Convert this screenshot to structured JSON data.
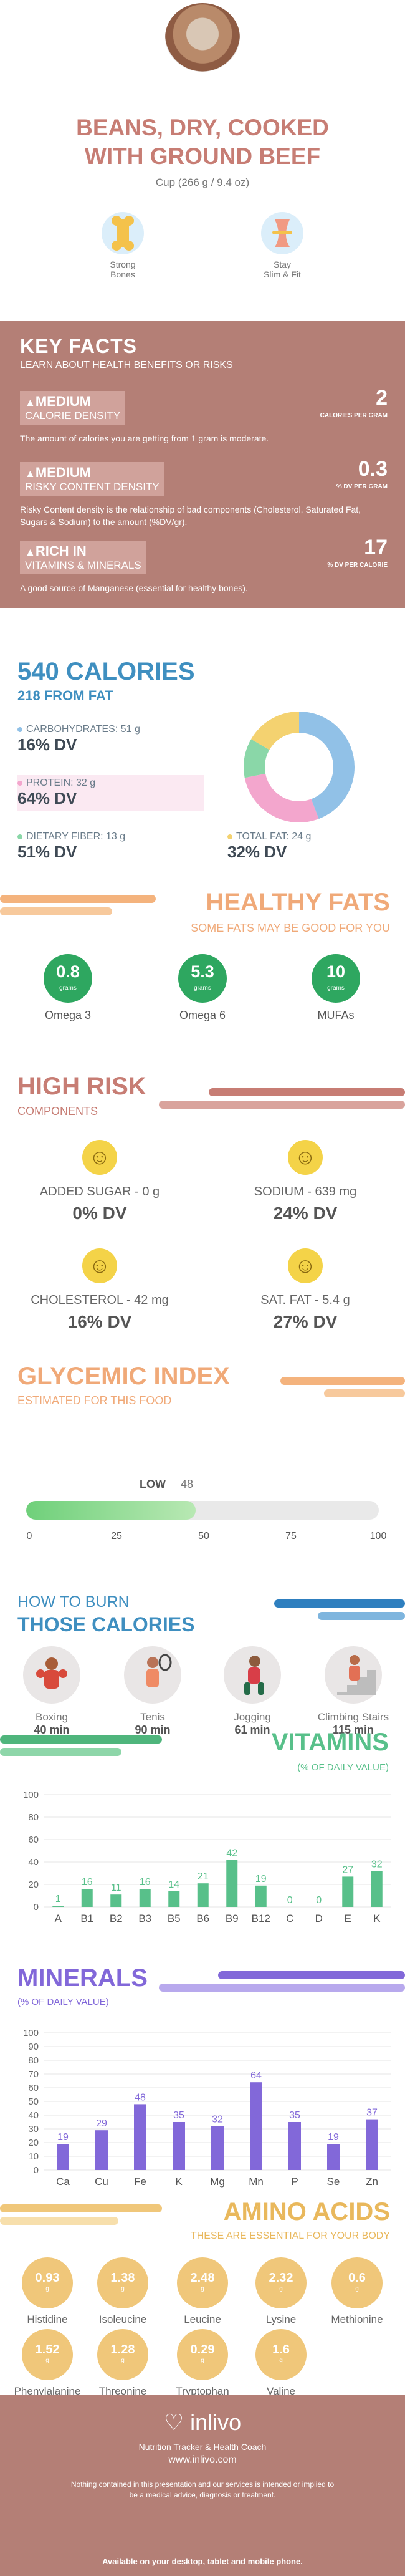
{
  "header": {
    "title_line1": "BEANS, DRY, COOKED",
    "title_line2": "WITH GROUND BEEF",
    "serving": "Cup (266 g / 9.4 oz)",
    "features": [
      {
        "label1": "Strong",
        "label2": "Bones",
        "icon": "bone-icon",
        "color": "#f4c24b"
      },
      {
        "label1": "Stay",
        "label2": "Slim & Fit",
        "icon": "slim-body-icon",
        "color": "#f19a83"
      }
    ]
  },
  "key_facts": {
    "title": "KEY FACTS",
    "subtitle": "LEARN ABOUT HEALTH BENEFITS OR RISKS",
    "items": [
      {
        "level": "MEDIUM",
        "name": "CALORIE DENSITY",
        "value": "2",
        "unit": "CALORIES PER GRAM",
        "desc": "The amount of calories you are getting from 1 gram is moderate."
      },
      {
        "level": "MEDIUM",
        "name": "RISKY CONTENT DENSITY",
        "value": "0.3",
        "unit": "% DV PER GRAM",
        "desc": "Risky Content density is the relationship of bad components (Cholesterol, Saturated Fat, Sugars & Sodium) to the amount (%DV/gr)."
      },
      {
        "level": "RICH IN",
        "name": "VITAMINS & MINERALS",
        "value": "17",
        "unit": "% DV PER CALORIE",
        "desc": "A good source of Manganese (essential for healthy bones)."
      }
    ]
  },
  "calories": {
    "title": "540 CALORIES",
    "subtitle": "218 FROM FAT",
    "macros": [
      {
        "label": "CARBOHYDRATES: 51 g",
        "dv": "16% DV",
        "color": "#91c1e7"
      },
      {
        "label": "PROTEIN: 32 g",
        "dv": "64% DV",
        "color": "#f3a6cd"
      },
      {
        "label": "DIETARY FIBER: 13 g",
        "dv": "51% DV",
        "color": "#8ad7a8"
      },
      {
        "label": "TOTAL FAT: 24 g",
        "dv": "32% DV",
        "color": "#f4d270"
      }
    ]
  },
  "healthy_fats": {
    "title": "HEALTHY FATS",
    "subtitle": "SOME FATS MAY BE GOOD FOR YOU",
    "items": [
      {
        "value": "0.8",
        "unit": "grams",
        "label": "Omega 3"
      },
      {
        "value": "5.3",
        "unit": "grams",
        "label": "Omega 6"
      },
      {
        "value": "10",
        "unit": "grams",
        "label": "MUFAs"
      }
    ]
  },
  "high_risk": {
    "title": "HIGH RISK",
    "subtitle": "COMPONENTS",
    "items": [
      {
        "label": "ADDED SUGAR - 0 g",
        "dv": "0% DV"
      },
      {
        "label": "SODIUM - 639 mg",
        "dv": "24% DV"
      },
      {
        "label": "CHOLESTEROL - 42 mg",
        "dv": "16% DV"
      },
      {
        "label": "SAT. FAT - 5.4 g",
        "dv": "27% DV"
      }
    ]
  },
  "glycemic": {
    "title": "GLYCEMIC INDEX",
    "subtitle": "ESTIMATED FOR THIS FOOD",
    "level": "LOW",
    "value": "48",
    "value_fraction": 0.48,
    "ticks": [
      "0",
      "25",
      "50",
      "75",
      "100"
    ]
  },
  "burn": {
    "title1": "HOW TO BURN",
    "title2": "THOSE CALORIES",
    "activities": [
      {
        "label": "Boxing",
        "time": "40 min",
        "icon": "boxing-icon"
      },
      {
        "label": "Tenis",
        "time": "90 min",
        "icon": "tennis-icon"
      },
      {
        "label": "Jogging",
        "time": "61 min",
        "icon": "jogging-icon"
      },
      {
        "label": "Climbing Stairs",
        "time": "115 min",
        "icon": "climbing-stairs-icon"
      }
    ]
  },
  "vitamins": {
    "title": "VITAMINS",
    "subtitle": "(% OF DAILY VALUE)"
  },
  "minerals": {
    "title": "MINERALS",
    "subtitle": "(% OF DAILY VALUE)"
  },
  "chart_data": [
    {
      "type": "bar",
      "categories": [
        "A",
        "B1",
        "B2",
        "B3",
        "B5",
        "B6",
        "B9",
        "B12",
        "C",
        "D",
        "E",
        "K"
      ],
      "values": [
        1,
        16,
        11,
        16,
        14,
        21,
        42,
        19,
        0,
        0,
        27,
        32
      ],
      "ylim": [
        0,
        100
      ],
      "yticks": [
        "0",
        "20",
        "40",
        "60",
        "80",
        "100"
      ],
      "color": "#58c08a"
    },
    {
      "type": "bar",
      "categories": [
        "Ca",
        "Cu",
        "Fe",
        "K",
        "Mg",
        "Mn",
        "P",
        "Se",
        "Zn"
      ],
      "values": [
        19,
        29,
        48,
        35,
        32,
        64,
        35,
        19,
        37
      ],
      "ylim": [
        0,
        100
      ],
      "yticks": [
        "0",
        "10",
        "20",
        "30",
        "40",
        "50",
        "60",
        "70",
        "80",
        "90",
        "100"
      ],
      "color": "#8268d9"
    }
  ],
  "amino": {
    "title": "AMINO ACIDS",
    "subtitle": "THESE ARE ESSENTIAL FOR YOUR BODY",
    "unit": "g",
    "items": [
      {
        "value": "0.93",
        "label": "Histidine"
      },
      {
        "value": "1.38",
        "label": "Isoleucine"
      },
      {
        "value": "2.48",
        "label": "Leucine"
      },
      {
        "value": "2.32",
        "label": "Lysine"
      },
      {
        "value": "0.6",
        "label": "Methionine"
      },
      {
        "value": "1.52",
        "label": "Phenylalanine"
      },
      {
        "value": "1.28",
        "label": "Threonine"
      },
      {
        "value": "0.29",
        "label": "Tryptophan"
      },
      {
        "value": "1.6",
        "label": "Valine"
      }
    ]
  },
  "footer": {
    "brand": "inlivo",
    "tagline": "Nutrition Tracker & Health Coach",
    "url": "www.inlivo.com",
    "disclaimer": "Nothing contained in this presentation and our services is intended or implied to be a medical advice, diagnosis or treatment.",
    "availability": "Available on your desktop, tablet and mobile phone."
  }
}
